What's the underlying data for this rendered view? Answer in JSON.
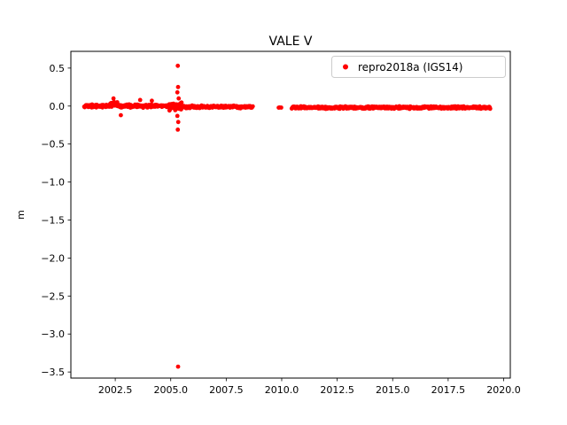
{
  "figure": {
    "background": "#ffffff"
  },
  "chart_data": {
    "type": "scatter",
    "title": "VALE V",
    "xlabel": "",
    "ylabel": "m",
    "legend": {
      "label": "repro2018a (IGS14)",
      "marker_color": "#ff0000",
      "position": "upper right"
    },
    "marker": {
      "color": "#ff0000",
      "radius_px": 2.4
    },
    "axes": {
      "xlim": [
        2000.5,
        2020.3
      ],
      "ylim": [
        -3.58,
        0.72
      ],
      "xticks": [
        2002.5,
        2005.0,
        2007.5,
        2010.0,
        2012.5,
        2015.0,
        2017.5,
        2020.0
      ],
      "xtick_labels": [
        "2002.5",
        "2005.0",
        "2007.5",
        "2010.0",
        "2012.5",
        "2015.0",
        "2017.5",
        "2020.0"
      ],
      "yticks": [
        0.5,
        0.0,
        -0.5,
        -1.0,
        -1.5,
        -2.0,
        -2.5,
        -3.0,
        -3.5
      ],
      "ytick_labels": [
        "0.5",
        "0.0",
        "−0.5",
        "−1.0",
        "−1.5",
        "−2.0",
        "−2.5",
        "−3.0",
        "−3.5"
      ],
      "grid": false
    },
    "dense_segments": [
      {
        "x_start": 2001.1,
        "x_end": 2002.2,
        "y_mean": 0.0,
        "y_jitter": 0.025,
        "points_per_year": 52
      },
      {
        "x_start": 2002.2,
        "x_end": 2002.6,
        "y_mean": 0.02,
        "y_jitter": 0.045,
        "points_per_year": 60
      },
      {
        "x_start": 2002.6,
        "x_end": 2004.9,
        "y_mean": 0.0,
        "y_jitter": 0.025,
        "points_per_year": 52
      },
      {
        "x_start": 2004.9,
        "x_end": 2005.5,
        "y_mean": -0.01,
        "y_jitter": 0.06,
        "points_per_year": 80
      },
      {
        "x_start": 2005.5,
        "x_end": 2008.7,
        "y_mean": -0.01,
        "y_jitter": 0.02,
        "points_per_year": 52
      },
      {
        "x_start": 2009.85,
        "x_end": 2010.0,
        "y_mean": -0.02,
        "y_jitter": 0.008,
        "points_per_year": 20
      },
      {
        "x_start": 2010.45,
        "x_end": 2019.4,
        "y_mean": -0.02,
        "y_jitter": 0.018,
        "points_per_year": 52
      }
    ],
    "outliers": [
      {
        "x": 2005.32,
        "y": 0.53
      },
      {
        "x": 2005.33,
        "y": 0.25
      },
      {
        "x": 2005.3,
        "y": 0.18
      },
      {
        "x": 2005.36,
        "y": 0.1
      },
      {
        "x": 2005.3,
        "y": -0.13
      },
      {
        "x": 2005.34,
        "y": -0.21
      },
      {
        "x": 2005.32,
        "y": -0.31
      },
      {
        "x": 2005.33,
        "y": -3.43
      },
      {
        "x": 2002.42,
        "y": 0.1
      },
      {
        "x": 2002.75,
        "y": -0.12
      },
      {
        "x": 2003.62,
        "y": 0.08
      },
      {
        "x": 2004.15,
        "y": 0.07
      }
    ]
  }
}
